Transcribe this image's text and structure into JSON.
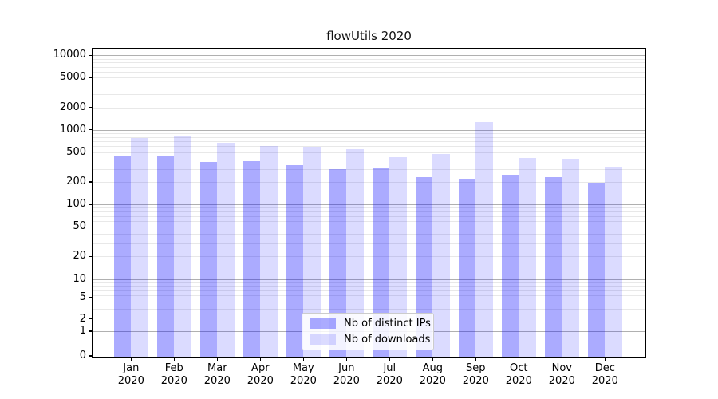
{
  "window": {
    "title": "flowUtils 2020"
  },
  "chart_data": {
    "type": "bar",
    "title": "flowUtils 2020",
    "x_categories": [
      "Jan",
      "Feb",
      "Mar",
      "Apr",
      "May",
      "Jun",
      "Jul",
      "Aug",
      "Sep",
      "Oct",
      "Nov",
      "Dec"
    ],
    "x_category_year": "2020",
    "series": [
      {
        "name": "Nb of distinct IPs",
        "color_fill": "rgba(0,0,255,0.33)",
        "values": [
          450,
          443,
          366,
          377,
          333,
          299,
          302,
          232,
          219,
          250,
          230,
          194
        ]
      },
      {
        "name": "Nb of downloads",
        "color_fill": "rgba(0,0,255,0.14)",
        "values": [
          770,
          821,
          661,
          611,
          587,
          545,
          426,
          470,
          1261,
          421,
          405,
          322
        ]
      }
    ],
    "y_ticks": [
      0,
      1,
      2,
      5,
      10,
      20,
      50,
      100,
      200,
      500,
      1000,
      2000,
      5000,
      10000
    ],
    "y_scale": "log (compressed linear-ish below 10, zero shown at axis base)",
    "ylim": [
      0,
      14000
    ],
    "grid": true,
    "grid_major_color": "#b0b0b0",
    "grid_minor_color": "#e8e8e8",
    "legend": {
      "position": "lower center",
      "labels": [
        "Nb of distinct IPs",
        "Nb of downloads"
      ]
    }
  }
}
